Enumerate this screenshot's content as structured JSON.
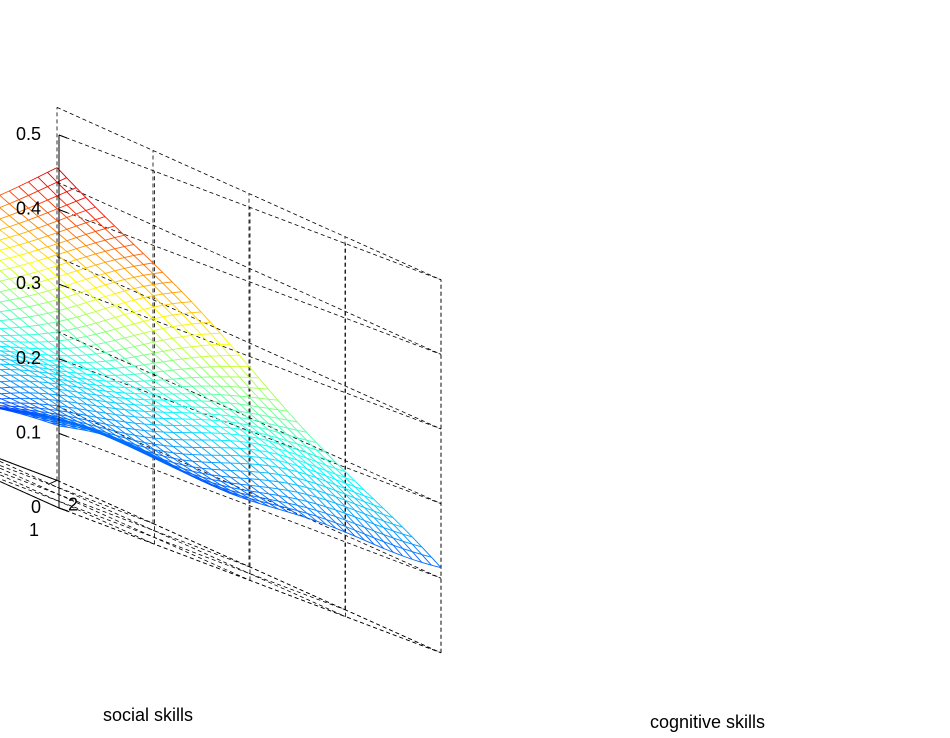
{
  "chart_data": {
    "type": "surface",
    "title": "",
    "xlabel": "cognitive skills",
    "ylabel": "social skills",
    "zlabel": "",
    "xlim": [
      -2,
      2
    ],
    "ylim": [
      -3,
      1
    ],
    "zlim": [
      0,
      0.5
    ],
    "xticks": [
      "-2",
      "-1",
      "0",
      "1",
      "2"
    ],
    "yticks": [
      "-3",
      "-2",
      "-1",
      "0",
      "1"
    ],
    "zticks": [
      "0",
      "0.1",
      "0.2",
      "0.3",
      "0.4",
      "0.5"
    ],
    "grid": true,
    "colormap": "jet",
    "surface_corners": [
      {
        "cognitive": -2,
        "social": 1,
        "value": 0.11
      },
      {
        "cognitive": 2,
        "social": 1,
        "value": 0.115
      },
      {
        "cognitive": -2,
        "social": -3,
        "value": 0.015
      },
      {
        "cognitive": 2,
        "social": -3,
        "value": 0.42
      }
    ]
  }
}
